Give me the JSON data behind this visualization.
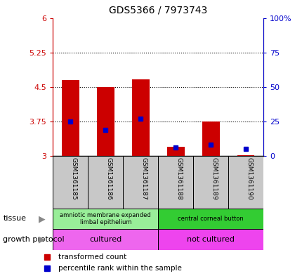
{
  "title": "GDS5366 / 7973743",
  "samples": [
    "GSM1361185",
    "GSM1361186",
    "GSM1361187",
    "GSM1361188",
    "GSM1361189",
    "GSM1361190"
  ],
  "red_values": [
    4.65,
    4.5,
    4.67,
    3.2,
    3.75,
    3.02
  ],
  "blue_values_pct": [
    25,
    19,
    27,
    6,
    8,
    5
  ],
  "ylim_left": [
    3.0,
    6.0
  ],
  "ylim_right": [
    0,
    100
  ],
  "left_ticks": [
    3.0,
    3.75,
    4.5,
    5.25,
    6.0
  ],
  "right_ticks": [
    0,
    25,
    50,
    75,
    100
  ],
  "left_tick_labels": [
    "3",
    "3.75",
    "4.5",
    "5.25",
    "6"
  ],
  "right_tick_labels": [
    "0",
    "25",
    "50",
    "75",
    "100%"
  ],
  "left_color": "#cc0000",
  "right_color": "#0000cc",
  "bar_width": 0.5,
  "tissue_groups": [
    {
      "label": "amniotic membrane expanded\nlimbal epithelium",
      "start": 0,
      "end": 3,
      "color": "#99ee99"
    },
    {
      "label": "central corneal button",
      "start": 3,
      "end": 6,
      "color": "#33cc33"
    }
  ],
  "protocol_groups": [
    {
      "label": "cultured",
      "start": 0,
      "end": 3,
      "color": "#ee66ee"
    },
    {
      "label": "not cultured",
      "start": 3,
      "end": 6,
      "color": "#ee44ee"
    }
  ],
  "bg_color": "#c8c8c8",
  "legend_red": "transformed count",
  "legend_blue": "percentile rank within the sample",
  "tissue_label": "tissue",
  "protocol_label": "growth protocol"
}
